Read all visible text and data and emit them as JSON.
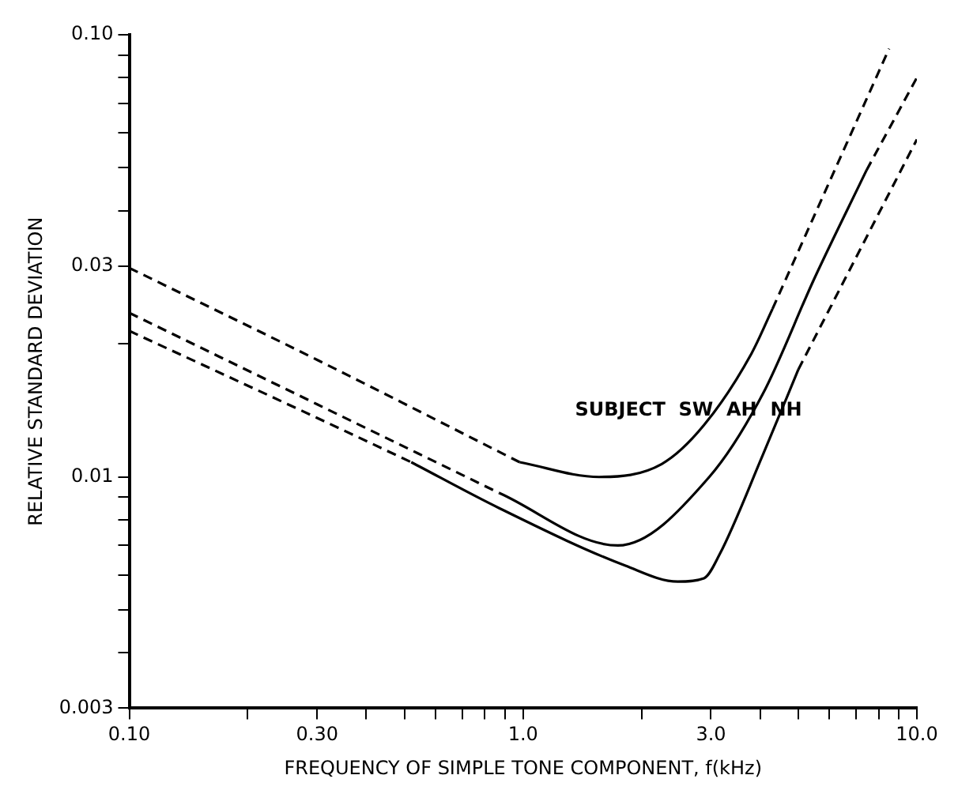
{
  "chart_data": {
    "type": "line",
    "xlabel": "FREQUENCY OF SIMPLE TONE COMPONENT, f(kHz)",
    "ylabel": "RELATIVE STANDARD DEVIATION",
    "annotations": [
      "SUBJECT  SW  AH  NH"
    ],
    "log": "xy",
    "grid": false,
    "legend": false,
    "marker": "none",
    "xlim": [
      0.1,
      10
    ],
    "ylim": [
      0.003,
      0.1
    ],
    "xticks": [
      {
        "value": 0.1,
        "label": "0.10"
      },
      {
        "value": 0.2,
        "label": null
      },
      {
        "value": 0.3,
        "label": "0.30"
      },
      {
        "value": 0.4,
        "label": null
      },
      {
        "value": 0.5,
        "label": null
      },
      {
        "value": 0.6,
        "label": null
      },
      {
        "value": 0.7,
        "label": null
      },
      {
        "value": 0.8,
        "label": null
      },
      {
        "value": 0.9,
        "label": null
      },
      {
        "value": 1,
        "label": "1.0"
      },
      {
        "value": 2,
        "label": null
      },
      {
        "value": 3,
        "label": "3.0"
      },
      {
        "value": 4,
        "label": null
      },
      {
        "value": 5,
        "label": null
      },
      {
        "value": 6,
        "label": null
      },
      {
        "value": 7,
        "label": null
      },
      {
        "value": 8,
        "label": null
      },
      {
        "value": 9,
        "label": null
      },
      {
        "value": 10,
        "label": "10.0"
      }
    ],
    "yticks": [
      0.003,
      {
        "value": 0.004,
        "label": null
      },
      {
        "value": 0.005,
        "label": null
      },
      {
        "value": 0.006,
        "label": null
      },
      {
        "value": 0.007,
        "label": null
      },
      {
        "value": 0.008,
        "label": null
      },
      {
        "value": 0.009,
        "label": null
      },
      0.01,
      {
        "value": 0.02,
        "label": null
      },
      0.03,
      {
        "value": 0.04,
        "label": null
      },
      {
        "value": 0.05,
        "label": null
      },
      {
        "value": 0.06,
        "label": null
      },
      {
        "value": 0.07,
        "label": null
      },
      {
        "value": 0.08,
        "label": null
      },
      {
        "value": 0.09,
        "label": null
      },
      {
        "value": 0.1,
        "label": "0.10"
      }
    ],
    "series": [
      {
        "color": "#000000",
        "line_style": "dashed",
        "x": [
          0.1,
          0.3,
          0.98
        ],
        "values": [
          0.0297,
          0.0184,
          0.0108
        ]
      },
      {
        "color": "#000000",
        "line_style": "solid",
        "x": [
          0.98,
          1.56,
          2.25,
          2.88,
          3.8,
          4.3
        ],
        "values": [
          0.0108,
          0.01,
          0.0107,
          0.0131,
          0.019,
          0.024
        ]
      },
      {
        "color": "#000000",
        "line_style": "dashed",
        "x": [
          4.3,
          8.5
        ],
        "values": [
          0.024,
          0.093
        ]
      },
      {
        "color": "#000000",
        "line_style": "dashed",
        "x": [
          0.1,
          0.3,
          0.87
        ],
        "values": [
          0.0235,
          0.0146,
          0.0092
        ]
      },
      {
        "color": "#000000",
        "line_style": "solid",
        "x": [
          0.87,
          1.74,
          2.97,
          4.06,
          5.5,
          7.45
        ],
        "values": [
          0.0092,
          0.007,
          0.01,
          0.0154,
          0.0282,
          0.0494
        ]
      },
      {
        "color": "#000000",
        "line_style": "dashed",
        "x": [
          7.45,
          10
        ],
        "values": [
          0.0494,
          0.08
        ]
      },
      {
        "color": "#000000",
        "line_style": "dashed",
        "x": [
          0.1,
          0.3,
          0.52
        ],
        "values": [
          0.0214,
          0.0136,
          0.0108
        ]
      },
      {
        "color": "#000000",
        "line_style": "solid",
        "x": [
          0.52,
          0.87,
          1.82,
          2.47,
          2.88,
          3.16,
          4.06,
          5.0
        ],
        "values": [
          0.0108,
          0.0085,
          0.0063,
          0.0058,
          0.0059,
          0.0067,
          0.0112,
          0.0175
        ]
      },
      {
        "color": "#000000",
        "line_style": "dashed",
        "x": [
          5.0,
          10
        ],
        "values": [
          0.0175,
          0.058
        ]
      }
    ]
  }
}
